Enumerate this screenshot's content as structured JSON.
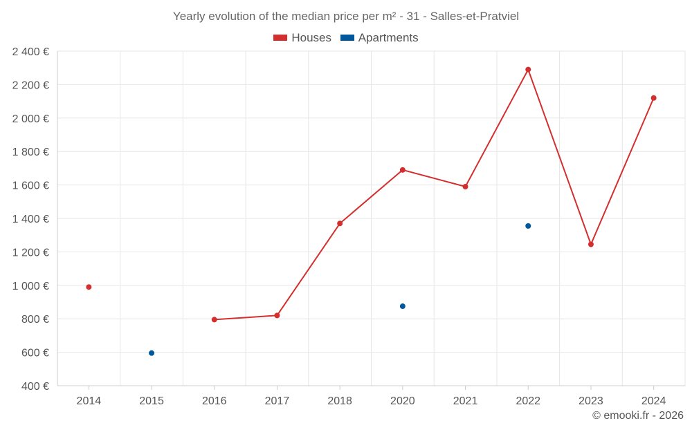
{
  "chart_data": {
    "type": "line",
    "title": "Yearly evolution of the median price per m² - 31 - Salles-et-Pratviel",
    "categories": [
      "2014",
      "2015",
      "2016",
      "2017",
      "2018",
      "2020",
      "2021",
      "2022",
      "2023",
      "2024"
    ],
    "series": [
      {
        "name": "Houses",
        "color": "#d32f2f",
        "values": [
          990,
          null,
          795,
          820,
          1370,
          1690,
          1590,
          2290,
          1245,
          2120
        ]
      },
      {
        "name": "Apartments",
        "color": "#01579b",
        "values": [
          null,
          595,
          null,
          null,
          null,
          875,
          null,
          1355,
          null,
          null
        ]
      }
    ],
    "y_ticks": [
      {
        "value": 2400,
        "label": "2 400 €"
      },
      {
        "value": 2200,
        "label": "2 200 €"
      },
      {
        "value": 2000,
        "label": "2 000 €"
      },
      {
        "value": 1800,
        "label": "1 800 €"
      },
      {
        "value": 1600,
        "label": "1 600 €"
      },
      {
        "value": 1400,
        "label": "1 400 €"
      },
      {
        "value": 1200,
        "label": "1 200 €"
      },
      {
        "value": 1000,
        "label": "1 000 €"
      },
      {
        "value": 800,
        "label": "800 €"
      },
      {
        "value": 600,
        "label": "600 €"
      },
      {
        "value": 400,
        "label": "400 €"
      }
    ],
    "ylim": [
      400,
      2400
    ],
    "grid": true,
    "legend_position": "top-center",
    "credit": "© emooki.fr - 2026"
  }
}
